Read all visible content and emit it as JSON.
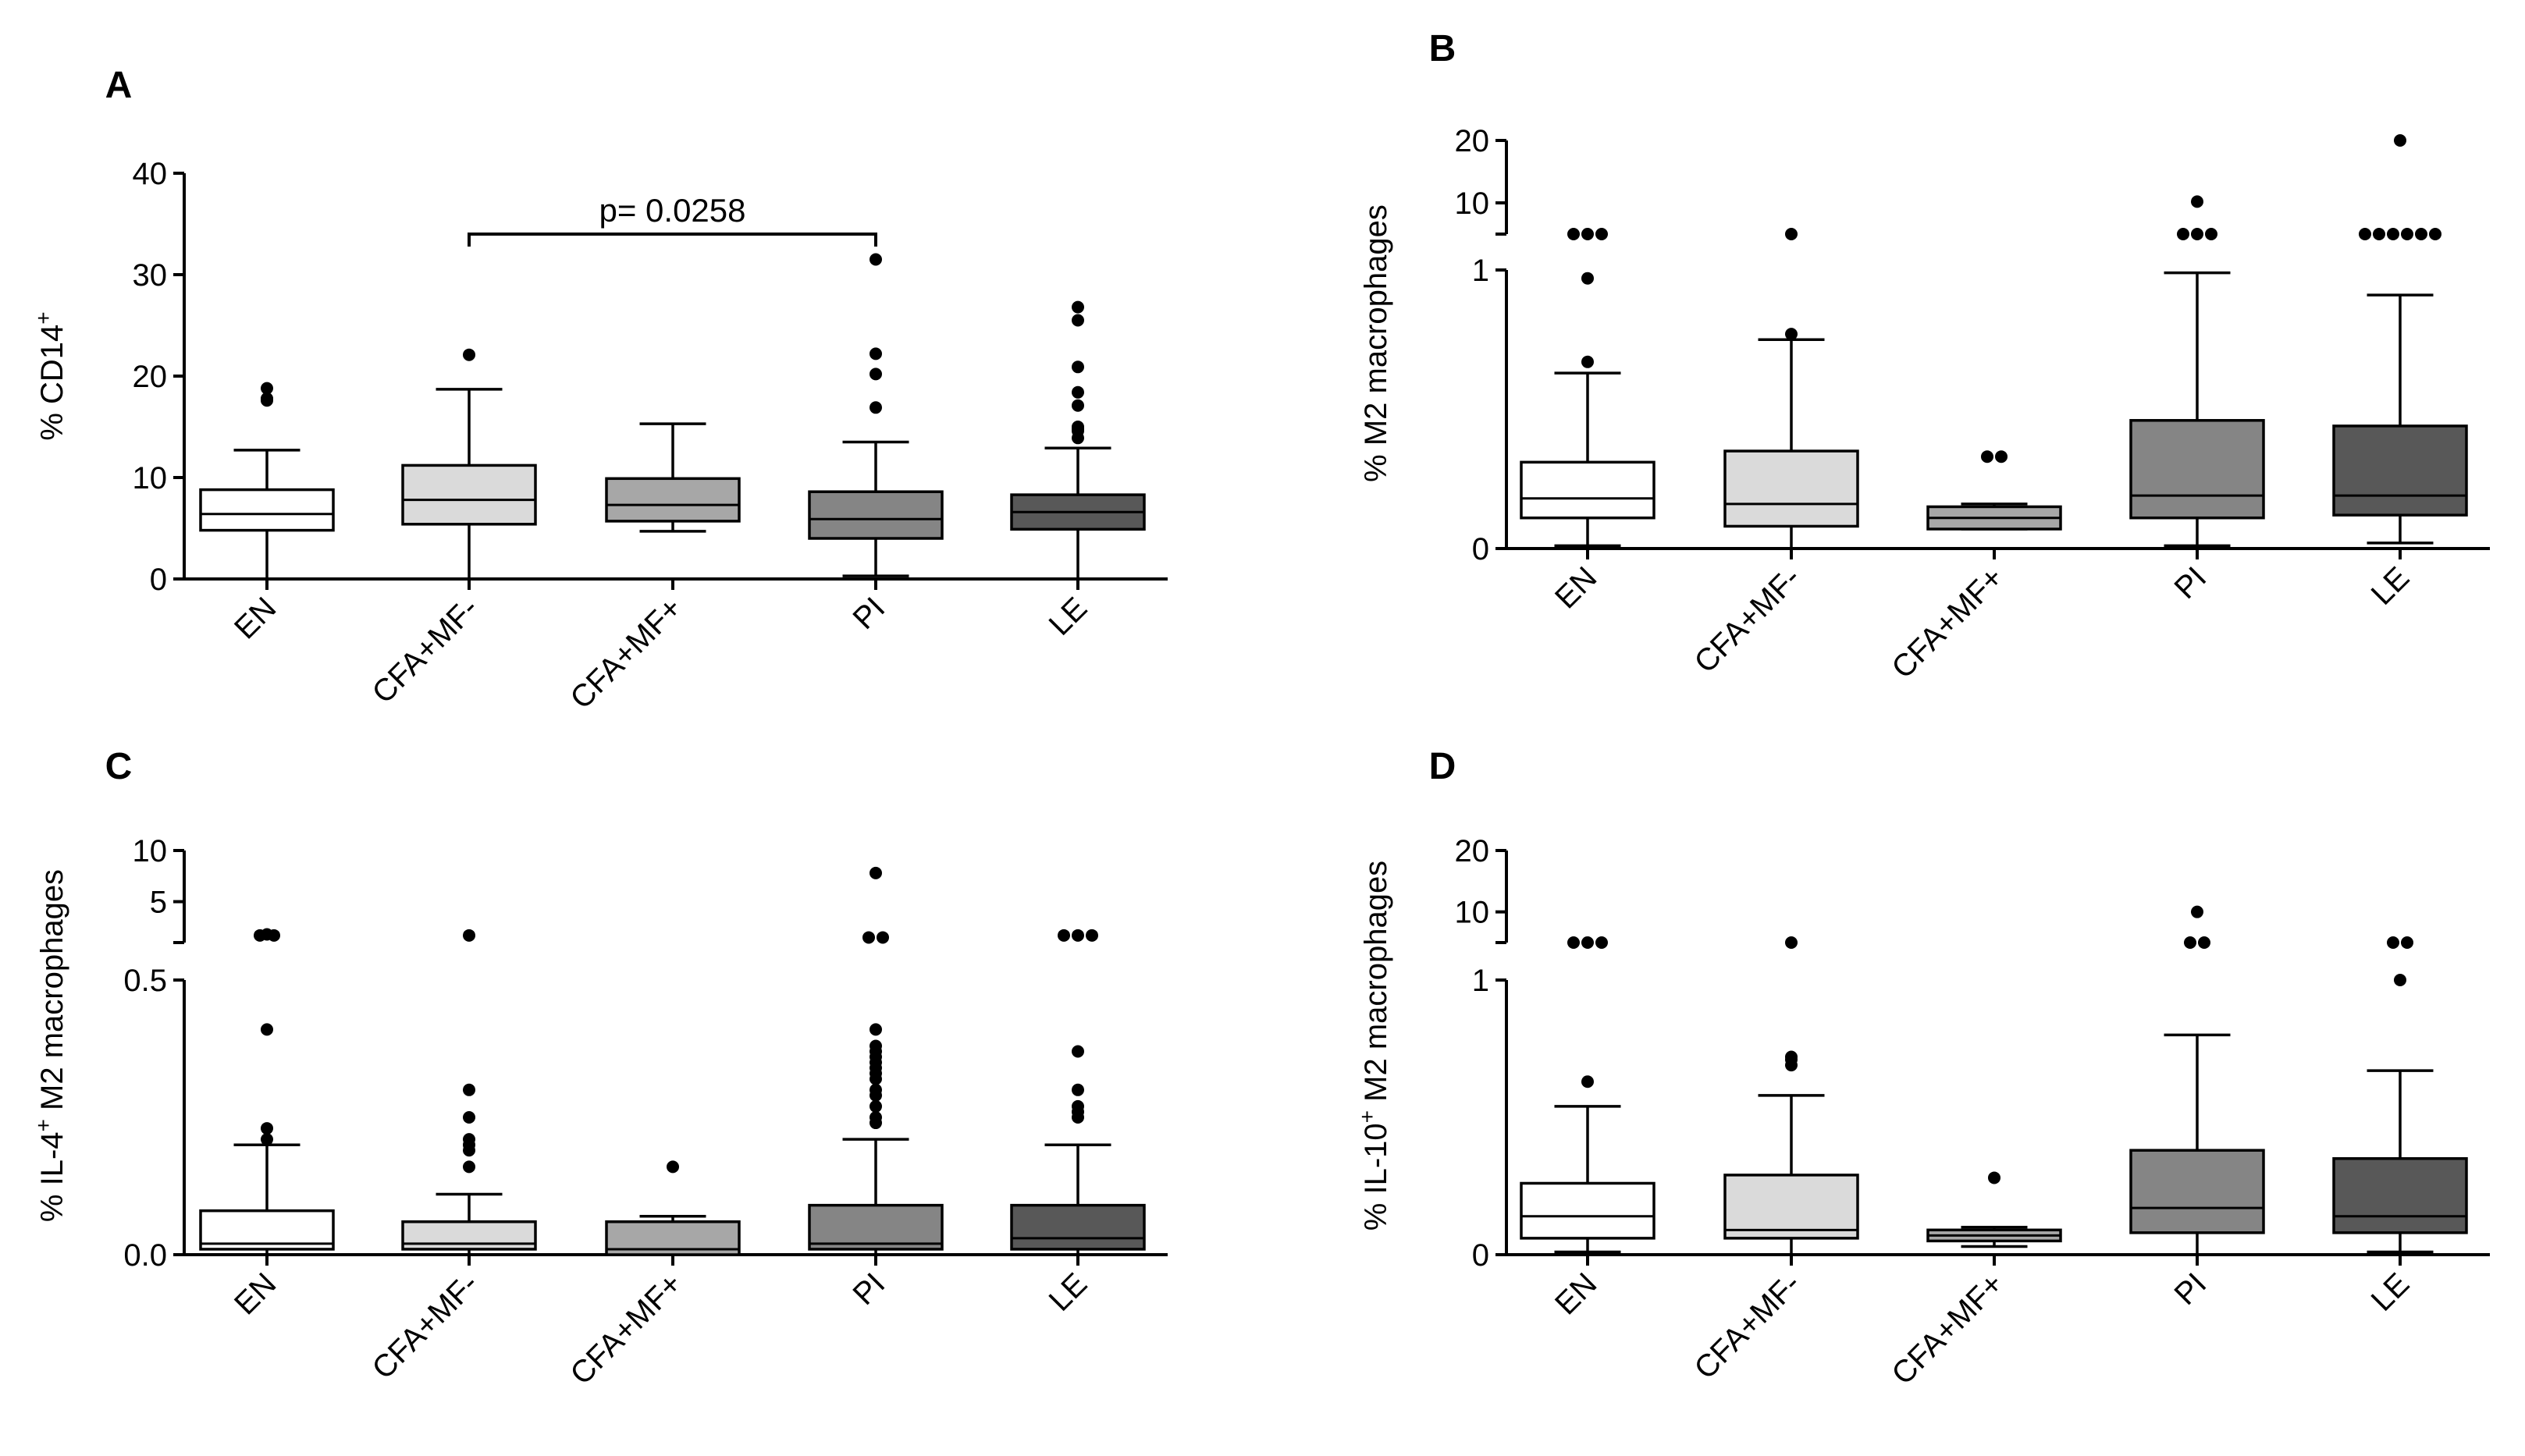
{
  "figure": {
    "group_colors": {
      "EN": "#ffffff",
      "CFA+MF-": "#dadada",
      "CFA+MF+": "#a7a7a7",
      "PI": "#858585",
      "LE": "#585858"
    }
  },
  "chart_data": [
    {
      "panel": "A",
      "type": "box",
      "ylabel_main": "% CD14",
      "ylabel_sup": "+",
      "ylabel_pre": "",
      "ylabel_sup2": "",
      "ylabel_post": "",
      "categories": [
        "EN",
        "CFA+MF-",
        "CFA+MF+",
        "PI",
        "LE"
      ],
      "yticks": [
        0,
        10,
        20,
        30,
        40
      ],
      "ytick_labels": [
        "0",
        "10",
        "20",
        "30",
        "40"
      ],
      "ylim": [
        0,
        40
      ],
      "boxes": [
        {
          "category": "EN",
          "whisker_low": 0,
          "q1": 4.8,
          "median": 6.4,
          "q3": 8.8,
          "whisker_high": 12.7,
          "outliers": [
            18.8,
            17.6,
            17.8
          ]
        },
        {
          "category": "CFA+MF-",
          "whisker_low": 0,
          "q1": 5.4,
          "median": 7.8,
          "q3": 11.2,
          "whisker_high": 18.7,
          "outliers": [
            22.1
          ]
        },
        {
          "category": "CFA+MF+",
          "whisker_low": 4.7,
          "q1": 5.7,
          "median": 7.3,
          "q3": 9.9,
          "whisker_high": 15.3,
          "outliers": []
        },
        {
          "category": "PI",
          "whisker_low": 0.3,
          "q1": 4.0,
          "median": 5.9,
          "q3": 8.6,
          "whisker_high": 13.5,
          "outliers": [
            31.5,
            22.2,
            20.2,
            16.9
          ]
        },
        {
          "category": "LE",
          "whisker_low": 0,
          "q1": 4.9,
          "median": 6.6,
          "q3": 8.3,
          "whisker_high": 12.9,
          "outliers": [
            26.8,
            25.5,
            20.9,
            18.4,
            17.1,
            15.0,
            14.6,
            14.8,
            13.9
          ]
        }
      ],
      "significance": {
        "from": "CFA+MF-",
        "to": "PI",
        "label": "p= 0.0258",
        "y": 34
      }
    },
    {
      "panel": "B",
      "type": "box",
      "ylabel_main": "% M2 macrophages",
      "ylabel_sup": "",
      "ylabel_pre": "",
      "ylabel_sup2": "",
      "ylabel_post": "",
      "categories": [
        "EN",
        "CFA+MF-",
        "CFA+MF+",
        "PI",
        "LE"
      ],
      "yticks": [
        0,
        1,
        10,
        20
      ],
      "ytick_labels": [
        "0",
        "1",
        "10",
        "20"
      ],
      "ylim": [
        0,
        20
      ],
      "axis_break": [
        1,
        5
      ],
      "boxes": [
        {
          "category": "EN",
          "whisker_low": 0.01,
          "q1": 0.11,
          "median": 0.18,
          "q3": 0.31,
          "whisker_high": 0.63,
          "outliers": [
            3.5,
            3.5,
            3.5,
            0.97,
            0.67
          ]
        },
        {
          "category": "CFA+MF-",
          "whisker_low": 0,
          "q1": 0.08,
          "median": 0.16,
          "q3": 0.35,
          "whisker_high": 0.75,
          "outliers": [
            3.5,
            0.77
          ]
        },
        {
          "category": "CFA+MF+",
          "whisker_low": 0.07,
          "q1": 0.07,
          "median": 0.11,
          "q3": 0.15,
          "whisker_high": 0.16,
          "outliers": [
            0.33,
            0.33
          ]
        },
        {
          "category": "PI",
          "whisker_low": 0.01,
          "q1": 0.11,
          "median": 0.19,
          "q3": 0.46,
          "whisker_high": 0.99,
          "outliers": [
            10.2,
            3.5,
            3.5,
            3.5
          ]
        },
        {
          "category": "LE",
          "whisker_low": 0.02,
          "q1": 0.12,
          "median": 0.19,
          "q3": 0.44,
          "whisker_high": 0.91,
          "outliers": [
            20.0,
            3.5,
            3.5,
            3.5,
            3.5,
            3.5,
            3.5
          ]
        }
      ]
    },
    {
      "panel": "C",
      "type": "box",
      "ylabel_main": "",
      "ylabel_sup": "",
      "ylabel_pre": "% IL-4",
      "ylabel_sup2": "+",
      "ylabel_post": " M2 macrophages",
      "categories": [
        "EN",
        "CFA+MF-",
        "CFA+MF+",
        "PI",
        "LE"
      ],
      "yticks": [
        0,
        0.5,
        5,
        10
      ],
      "ytick_labels": [
        "0.0",
        "0.5",
        "5",
        "10"
      ],
      "ylim": [
        0,
        10
      ],
      "axis_break": [
        0.5,
        1
      ],
      "boxes": [
        {
          "category": "EN",
          "whisker_low": 0,
          "q1": 0.01,
          "median": 0.02,
          "q3": 0.08,
          "whisker_high": 0.2,
          "outliers": [
            1.8,
            1.7,
            1.7,
            0.41,
            0.23,
            0.21
          ]
        },
        {
          "category": "CFA+MF-",
          "whisker_low": 0,
          "q1": 0.01,
          "median": 0.02,
          "q3": 0.06,
          "whisker_high": 0.11,
          "outliers": [
            1.7,
            0.3,
            0.25,
            0.21,
            0.2,
            0.19,
            0.16
          ]
        },
        {
          "category": "CFA+MF+",
          "whisker_low": 0,
          "q1": 0,
          "median": 0.01,
          "q3": 0.06,
          "whisker_high": 0.07,
          "outliers": [
            0.16
          ]
        },
        {
          "category": "PI",
          "whisker_low": 0,
          "q1": 0.01,
          "median": 0.02,
          "q3": 0.09,
          "whisker_high": 0.21,
          "outliers": [
            7.8,
            1.5,
            1.5,
            0.41,
            0.38,
            0.37,
            0.36,
            0.35,
            0.34,
            0.33,
            0.32,
            0.3,
            0.29,
            0.27,
            0.25,
            0.24
          ]
        },
        {
          "category": "LE",
          "whisker_low": 0,
          "q1": 0.01,
          "median": 0.03,
          "q3": 0.09,
          "whisker_high": 0.2,
          "outliers": [
            1.7,
            1.7,
            1.7,
            0.37,
            0.3,
            0.27,
            0.26,
            0.25
          ]
        }
      ]
    },
    {
      "panel": "D",
      "type": "box",
      "ylabel_main": "",
      "ylabel_sup": "",
      "ylabel_pre": "%  IL-10",
      "ylabel_sup2": "+",
      "ylabel_post": " M2 macrophages",
      "categories": [
        "EN",
        "CFA+MF-",
        "CFA+MF+",
        "PI",
        "LE"
      ],
      "yticks": [
        0,
        1,
        10,
        20
      ],
      "ytick_labels": [
        "0",
        "1",
        "10",
        "20"
      ],
      "ylim": [
        0,
        20
      ],
      "axis_break": [
        1,
        5
      ],
      "boxes": [
        {
          "category": "EN",
          "whisker_low": 0.01,
          "q1": 0.06,
          "median": 0.14,
          "q3": 0.26,
          "whisker_high": 0.54,
          "outliers": [
            3.5,
            3.5,
            3.5,
            0.63
          ]
        },
        {
          "category": "CFA+MF-",
          "whisker_low": 0,
          "q1": 0.06,
          "median": 0.09,
          "q3": 0.29,
          "whisker_high": 0.58,
          "outliers": [
            3.5,
            0.72,
            0.71,
            0.69
          ]
        },
        {
          "category": "CFA+MF+",
          "whisker_low": 0.03,
          "q1": 0.05,
          "median": 0.07,
          "q3": 0.09,
          "whisker_high": 0.1,
          "outliers": [
            0.28
          ]
        },
        {
          "category": "PI",
          "whisker_low": 0,
          "q1": 0.08,
          "median": 0.17,
          "q3": 0.38,
          "whisker_high": 0.8,
          "outliers": [
            10.0,
            3.5,
            3.5
          ]
        },
        {
          "category": "LE",
          "whisker_low": 0.01,
          "q1": 0.08,
          "median": 0.14,
          "q3": 0.35,
          "whisker_high": 0.67,
          "outliers": [
            3.5,
            3.5,
            1.0
          ]
        }
      ]
    }
  ]
}
